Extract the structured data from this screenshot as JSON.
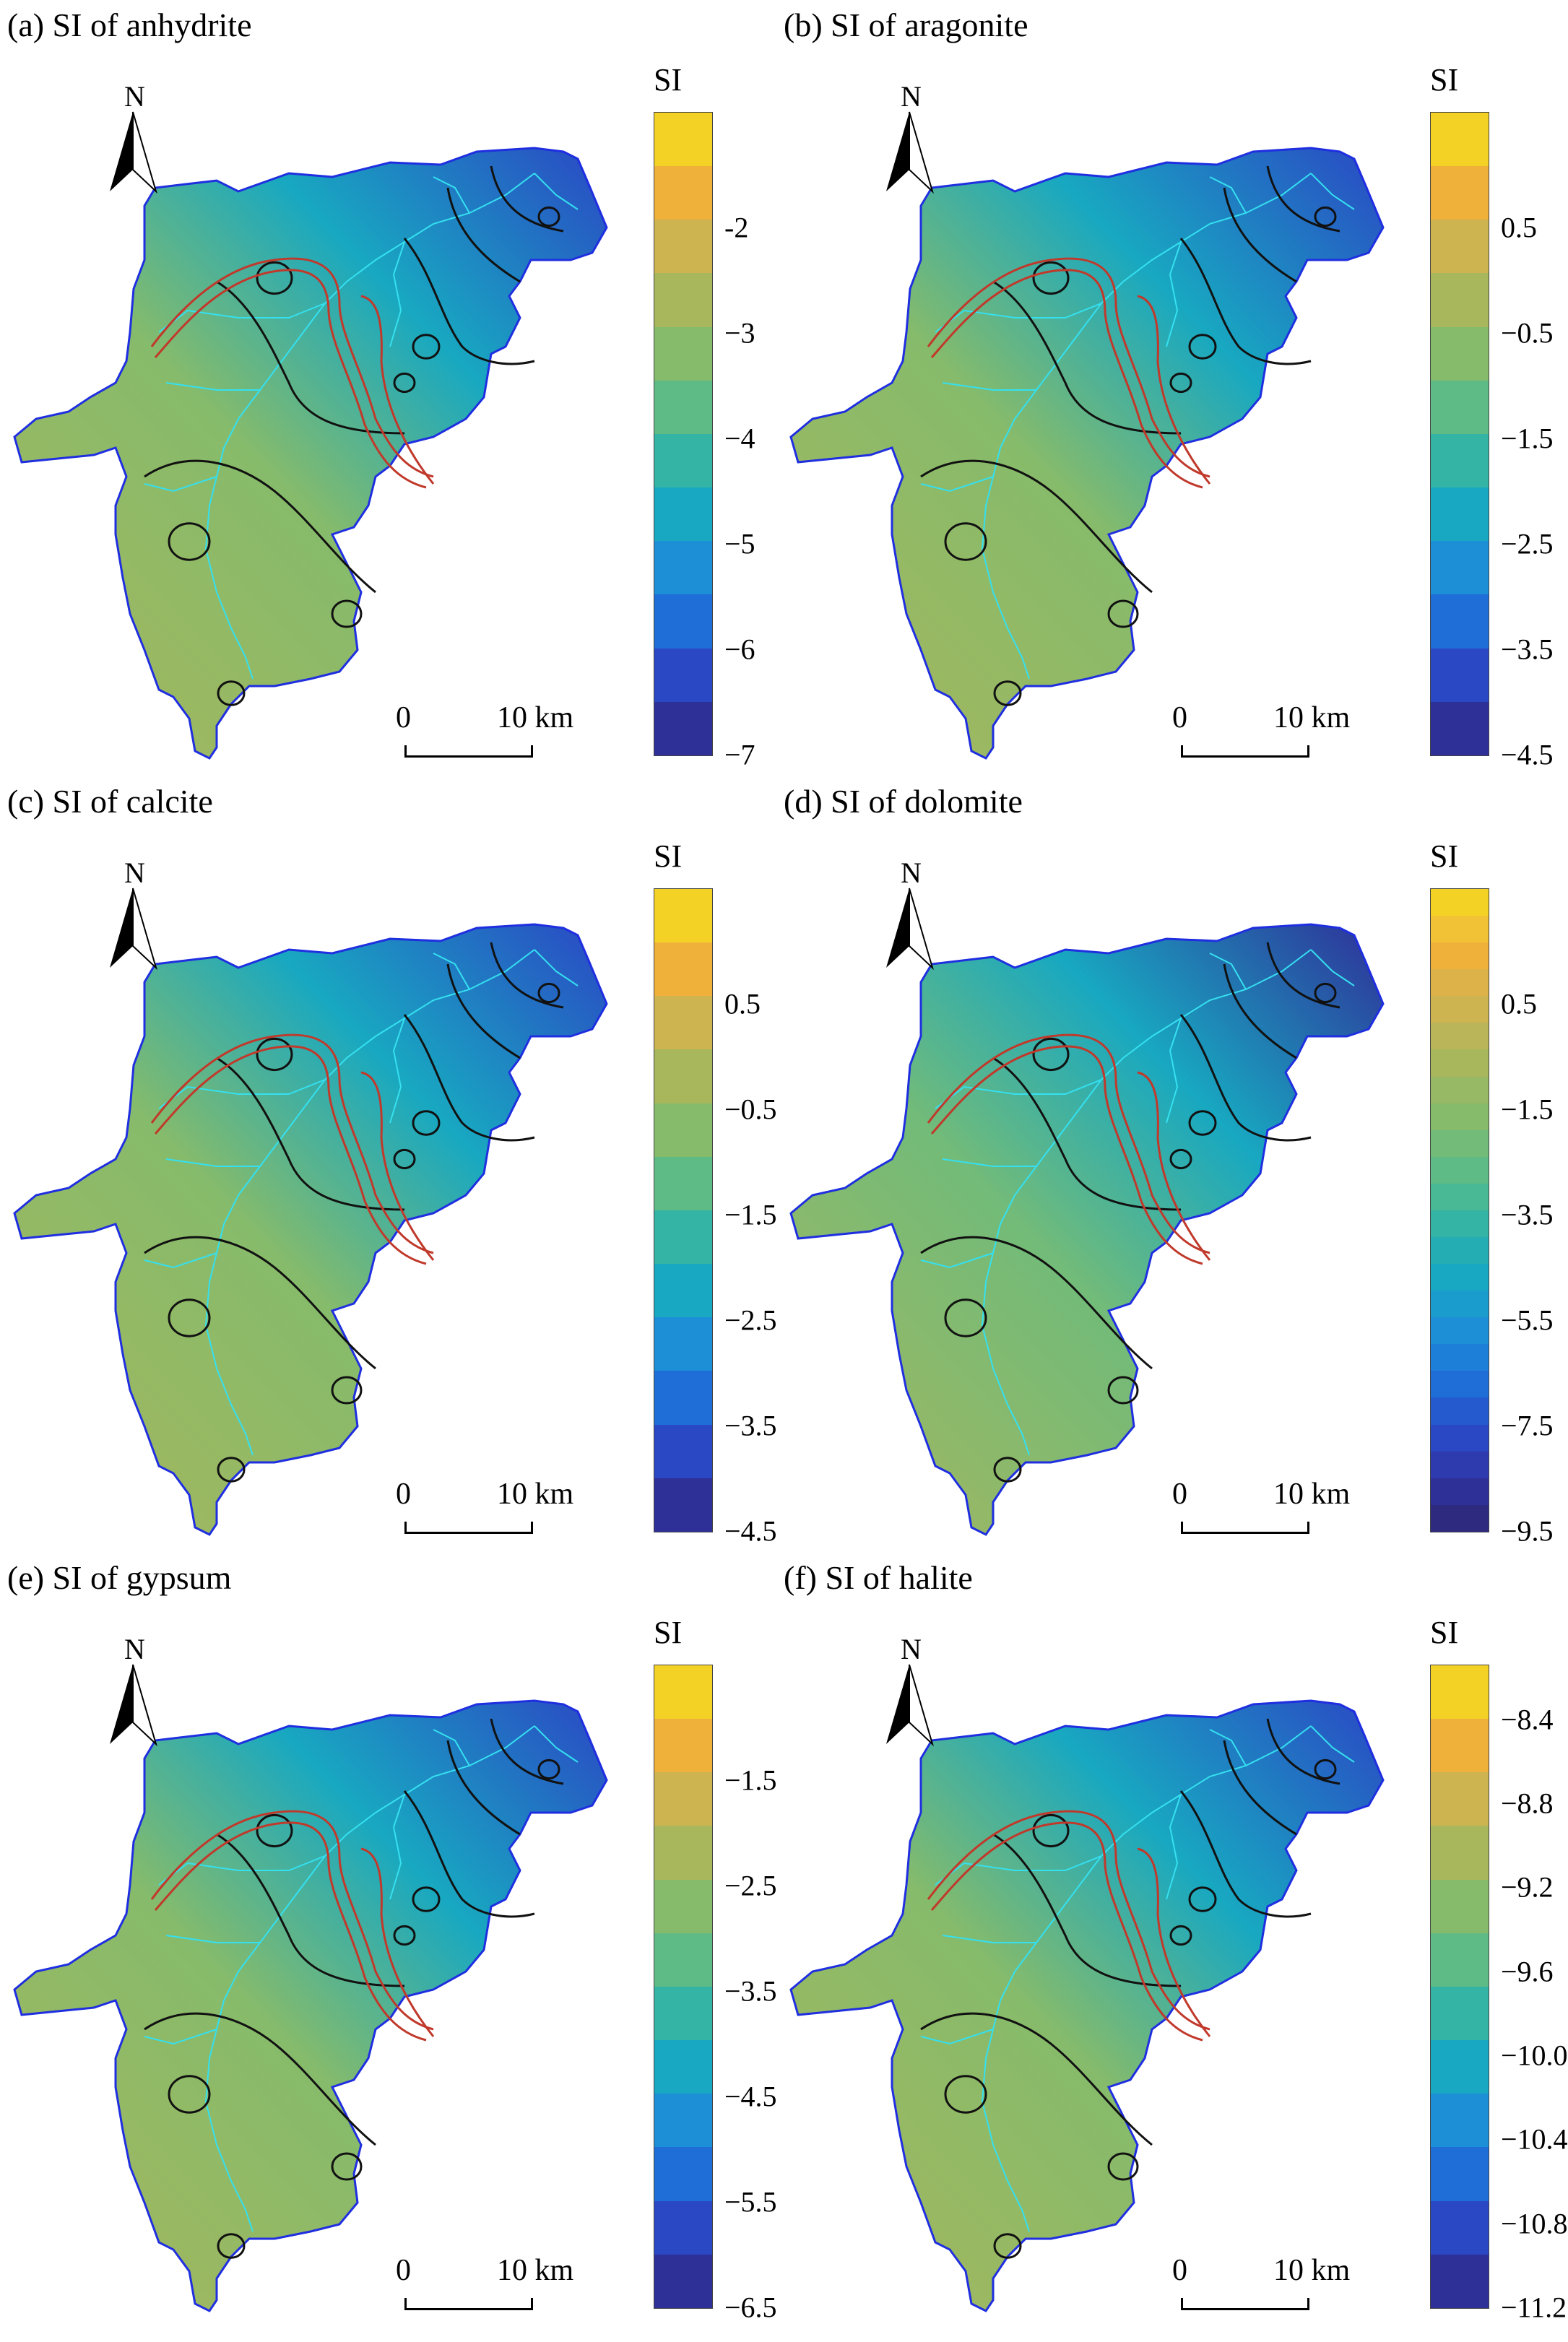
{
  "figure": {
    "panels": [
      {
        "id": "a",
        "title": "(a) SI of anhydrite",
        "legend_title": "SI",
        "ticks": [
          "-2",
          "−3",
          "−4",
          "−5",
          "−6",
          "−7"
        ],
        "colors": [
          "#f4d225",
          "#f0b13b",
          "#cdb451",
          "#a8b65c",
          "#86bb6b",
          "#5fbb86",
          "#33b4a4",
          "#18a8c1",
          "#1c8fd6",
          "#1f6ed8",
          "#2a47c4",
          "#2f2f98"
        ],
        "scale_labels": [
          "0",
          "10 km"
        ],
        "north_label": "N"
      },
      {
        "id": "b",
        "title": "(b) SI of aragonite",
        "legend_title": "SI",
        "ticks": [
          "0.5",
          "−0.5",
          "−1.5",
          "−2.5",
          "−3.5",
          "−4.5"
        ],
        "colors": [
          "#f4d225",
          "#f0b13b",
          "#cdb451",
          "#a8b65c",
          "#86bb6b",
          "#5fbb86",
          "#33b4a4",
          "#18a8c1",
          "#1c8fd6",
          "#1f6ed8",
          "#2a47c4",
          "#2f2f98"
        ],
        "scale_labels": [
          "0",
          "10 km"
        ],
        "north_label": "N"
      },
      {
        "id": "c",
        "title": "(c) SI of calcite",
        "legend_title": "SI",
        "ticks": [
          "0.5",
          "−0.5",
          "−1.5",
          "−2.5",
          "−3.5",
          "−4.5"
        ],
        "colors": [
          "#f4d225",
          "#f0b13b",
          "#cdb451",
          "#a8b65c",
          "#86bb6b",
          "#5fbb86",
          "#33b4a4",
          "#18a8c1",
          "#1c8fd6",
          "#1f6ed8",
          "#2a47c4",
          "#2f2f98"
        ],
        "scale_labels": [
          "0",
          "10 km"
        ],
        "north_label": "N"
      },
      {
        "id": "d",
        "title": "(d) SI of dolomite",
        "legend_title": "SI",
        "ticks": [
          "0.5",
          "−1.5",
          "−3.5",
          "−5.5",
          "−7.5",
          "−9.5"
        ],
        "colors": [
          "#f4d225",
          "#f2c236",
          "#f0b13b",
          "#ddb248",
          "#cdb451",
          "#bab558",
          "#a8b65c",
          "#97b864",
          "#86bb6b",
          "#72bb79",
          "#5fbb86",
          "#48b895",
          "#33b4a4",
          "#24aeb3",
          "#18a8c1",
          "#1a9ccc",
          "#1c8fd6",
          "#1d7fd7",
          "#1f6ed8",
          "#245ace",
          "#2a47c4",
          "#2d3bae",
          "#2f2f98",
          "#2d2a80"
        ],
        "scale_labels": [
          "0",
          "10 km"
        ],
        "north_label": "N"
      },
      {
        "id": "e",
        "title": "(e) SI of gypsum",
        "legend_title": "SI",
        "ticks": [
          "−1.5",
          "−2.5",
          "−3.5",
          "−4.5",
          "−5.5",
          "−6.5"
        ],
        "colors": [
          "#f4d225",
          "#f0b13b",
          "#cdb451",
          "#a8b65c",
          "#86bb6b",
          "#5fbb86",
          "#33b4a4",
          "#18a8c1",
          "#1c8fd6",
          "#1f6ed8",
          "#2a47c4",
          "#2f2f98"
        ],
        "scale_labels": [
          "0",
          "10 km"
        ],
        "north_label": "N"
      },
      {
        "id": "f",
        "title": "(f) SI of halite",
        "legend_title": "SI",
        "ticks": [
          "−8.4",
          "−8.8",
          "−9.2",
          "−9.6",
          "−10.0",
          "−10.4",
          "−10.8",
          "−11.2"
        ],
        "colors": [
          "#f4d225",
          "#f0b13b",
          "#cdb451",
          "#a8b65c",
          "#86bb6b",
          "#5fbb86",
          "#33b4a4",
          "#18a8c1",
          "#1c8fd6",
          "#1f6ed8",
          "#2a47c4",
          "#2f2f98"
        ],
        "scale_labels": [
          "0",
          "10 km"
        ],
        "north_label": "N"
      }
    ]
  }
}
